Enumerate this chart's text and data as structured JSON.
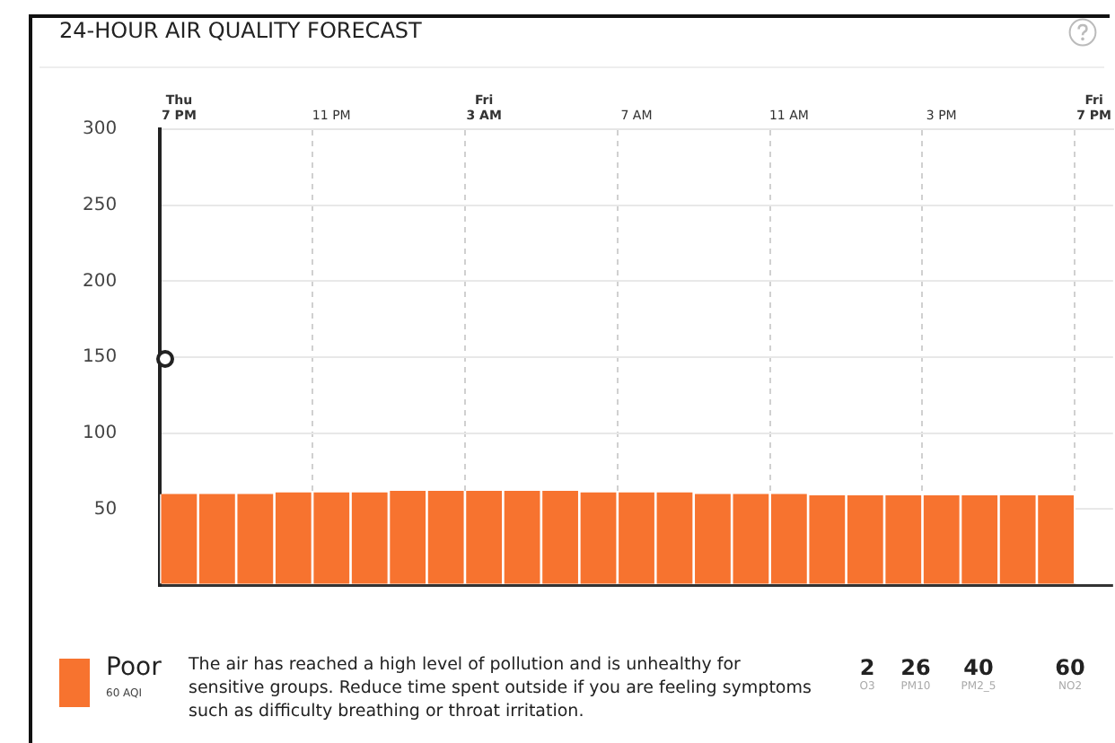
{
  "chart_data": {
    "type": "bar",
    "title": "24-HOUR AIR QUALITY FORECAST",
    "categories": [
      "Thu\n7 PM",
      null,
      null,
      null,
      "11 PM",
      null,
      null,
      null,
      "Fri\n3 AM",
      null,
      null,
      null,
      "7 AM",
      null,
      null,
      null,
      "11 AM",
      null,
      null,
      null,
      "3 PM",
      null,
      null,
      null,
      "Fri\n7 PM"
    ],
    "values": [
      60,
      60,
      60,
      61,
      61,
      61,
      62,
      62,
      62,
      62,
      62,
      61,
      61,
      61,
      60,
      60,
      60,
      59,
      59,
      59,
      59,
      59,
      59,
      59,
      null
    ],
    "color": "#f7732f",
    "ylim": [
      0,
      300
    ],
    "yticks": [
      {
        "value": 0,
        "label": null
      },
      50,
      100,
      150,
      200,
      250,
      300
    ],
    "grid": true,
    "annotations": [
      "Poor",
      "60 AQI",
      "The air has reached a high level of pollution and is unhealthy for sensitive groups. Reduce time spent outside if you are feeling symptoms such as difficulty breathing or throat irritation.",
      "2",
      "O3",
      "26",
      "PM10",
      "40",
      "PM2_5",
      "60",
      "NO2"
    ]
  }
}
